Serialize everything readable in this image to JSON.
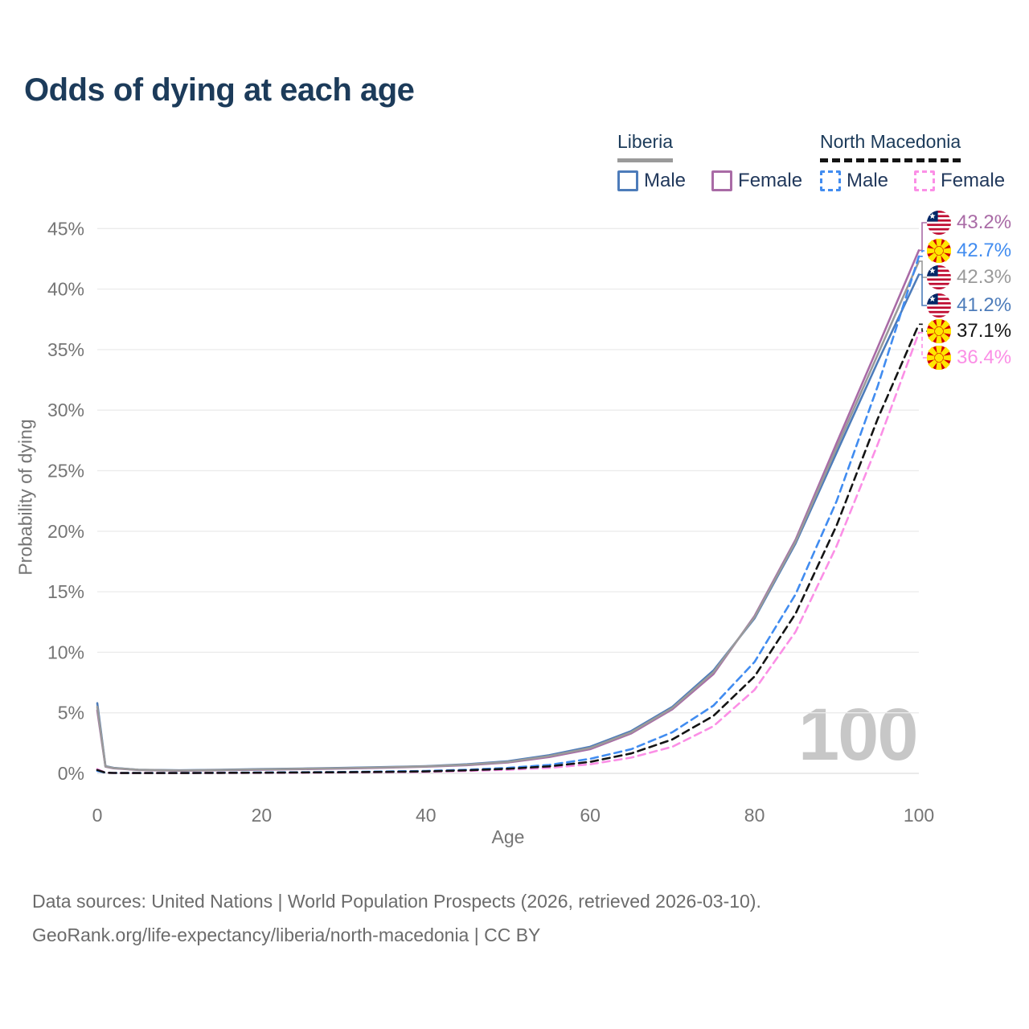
{
  "title": "Odds of dying at each age",
  "watermark": "100",
  "legend": {
    "groups": [
      {
        "country": "Liberia",
        "series_key": "liberia_both",
        "items": [
          {
            "label": "Male",
            "series_key": "liberia_male"
          },
          {
            "label": "Female",
            "series_key": "liberia_female"
          }
        ]
      },
      {
        "country": "North Macedonia",
        "series_key": "nm_both",
        "items": [
          {
            "label": "Male",
            "series_key": "nm_male"
          },
          {
            "label": "Female",
            "series_key": "nm_female"
          }
        ]
      }
    ]
  },
  "colors": {
    "title_navy": "#1c3b5a",
    "axis_text": "#757575",
    "gridline": "#ebebeb",
    "baseline": "#dedede",
    "watermark": "#c7c7c7",
    "footer_text": "#6b6b6b"
  },
  "chart_data": {
    "type": "line",
    "title": "Odds of dying at each age",
    "xlabel": "Age",
    "ylabel": "Probability of dying",
    "xlim": [
      0,
      100
    ],
    "ylim": [
      0,
      45
    ],
    "x_ticks": [
      0,
      20,
      40,
      60,
      80,
      100
    ],
    "y_ticks": [
      0,
      5,
      10,
      15,
      20,
      25,
      30,
      35,
      40,
      45
    ],
    "y_tick_suffix": "%",
    "grid": "horizontal-only",
    "legend_position": "top-right",
    "x": [
      0,
      1,
      2,
      5,
      10,
      15,
      20,
      25,
      30,
      35,
      40,
      45,
      50,
      55,
      60,
      65,
      70,
      75,
      80,
      85,
      90,
      95,
      100
    ],
    "series": [
      {
        "key": "liberia_male",
        "name": "Liberia Male",
        "country": "Liberia",
        "sex": "Male",
        "style": "solid",
        "color": "#4d7cba",
        "values": [
          5.8,
          0.6,
          0.45,
          0.3,
          0.25,
          0.3,
          0.35,
          0.4,
          0.45,
          0.52,
          0.6,
          0.75,
          1.0,
          1.5,
          2.2,
          3.5,
          5.5,
          8.5,
          12.8,
          19.0,
          26.5,
          34.0,
          41.2
        ],
        "end_value": "41.2%"
      },
      {
        "key": "liberia_female",
        "name": "Liberia Female",
        "country": "Liberia",
        "sex": "Female",
        "style": "solid",
        "color": "#a96ba6",
        "values": [
          5.2,
          0.55,
          0.42,
          0.28,
          0.22,
          0.26,
          0.3,
          0.35,
          0.4,
          0.47,
          0.55,
          0.68,
          0.9,
          1.35,
          2.0,
          3.3,
          5.3,
          8.2,
          13.0,
          19.3,
          27.3,
          35.2,
          43.2
        ],
        "end_value": "43.2%"
      },
      {
        "key": "liberia_both",
        "name": "Liberia Both sexes",
        "country": "Liberia",
        "sex": "Both",
        "style": "solid",
        "color": "#9a9a9a",
        "values": [
          5.5,
          0.58,
          0.44,
          0.29,
          0.24,
          0.28,
          0.33,
          0.38,
          0.43,
          0.5,
          0.58,
          0.72,
          0.95,
          1.43,
          2.1,
          3.4,
          5.4,
          8.35,
          12.9,
          19.15,
          26.9,
          34.6,
          42.3
        ],
        "end_value": "42.3%"
      },
      {
        "key": "nm_male",
        "name": "North Macedonia Male",
        "country": "North Macedonia",
        "sex": "Male",
        "style": "dashed",
        "color": "#418cf0",
        "values": [
          0.2,
          0.06,
          0.04,
          0.03,
          0.03,
          0.05,
          0.07,
          0.09,
          0.11,
          0.15,
          0.2,
          0.3,
          0.45,
          0.7,
          1.2,
          2.0,
          3.4,
          5.6,
          9.2,
          14.8,
          22.5,
          32.0,
          42.7
        ],
        "end_value": "42.7%"
      },
      {
        "key": "nm_female",
        "name": "North Macedonia Female",
        "country": "North Macedonia",
        "sex": "Female",
        "style": "dashed",
        "color": "#fb8fe6",
        "values": [
          0.35,
          0.05,
          0.03,
          0.02,
          0.02,
          0.03,
          0.04,
          0.05,
          0.07,
          0.09,
          0.12,
          0.2,
          0.3,
          0.45,
          0.75,
          1.3,
          2.2,
          3.9,
          6.9,
          11.7,
          18.8,
          27.2,
          36.4
        ],
        "end_value": "36.4%"
      },
      {
        "key": "nm_both",
        "name": "North Macedonia Both sexes",
        "country": "North Macedonia",
        "sex": "Both",
        "style": "dashed",
        "color": "#141414",
        "values": [
          0.28,
          0.055,
          0.035,
          0.025,
          0.025,
          0.04,
          0.055,
          0.07,
          0.09,
          0.12,
          0.16,
          0.25,
          0.38,
          0.58,
          0.95,
          1.65,
          2.8,
          4.75,
          8.0,
          13.2,
          20.5,
          29.3,
          37.1
        ],
        "end_value": "37.1%"
      }
    ],
    "end_labels": [
      {
        "value": "43.2%",
        "series_key": "liberia_female",
        "flag": "liberia"
      },
      {
        "value": "42.7%",
        "series_key": "nm_male",
        "flag": "north-macedonia"
      },
      {
        "value": "42.3%",
        "series_key": "liberia_both",
        "flag": "liberia"
      },
      {
        "value": "41.2%",
        "series_key": "liberia_male",
        "flag": "liberia"
      },
      {
        "value": "37.1%",
        "series_key": "nm_both",
        "flag": "north-macedonia"
      },
      {
        "value": "36.4%",
        "series_key": "nm_female",
        "flag": "north-macedonia"
      }
    ],
    "hover_age_indicator": "100"
  },
  "footer": {
    "line1": "Data sources: United Nations | World Population Prospects (2026, retrieved 2026-03-10).",
    "line2": "GeoRank.org/life-expectancy/liberia/north-macedonia | CC BY"
  }
}
